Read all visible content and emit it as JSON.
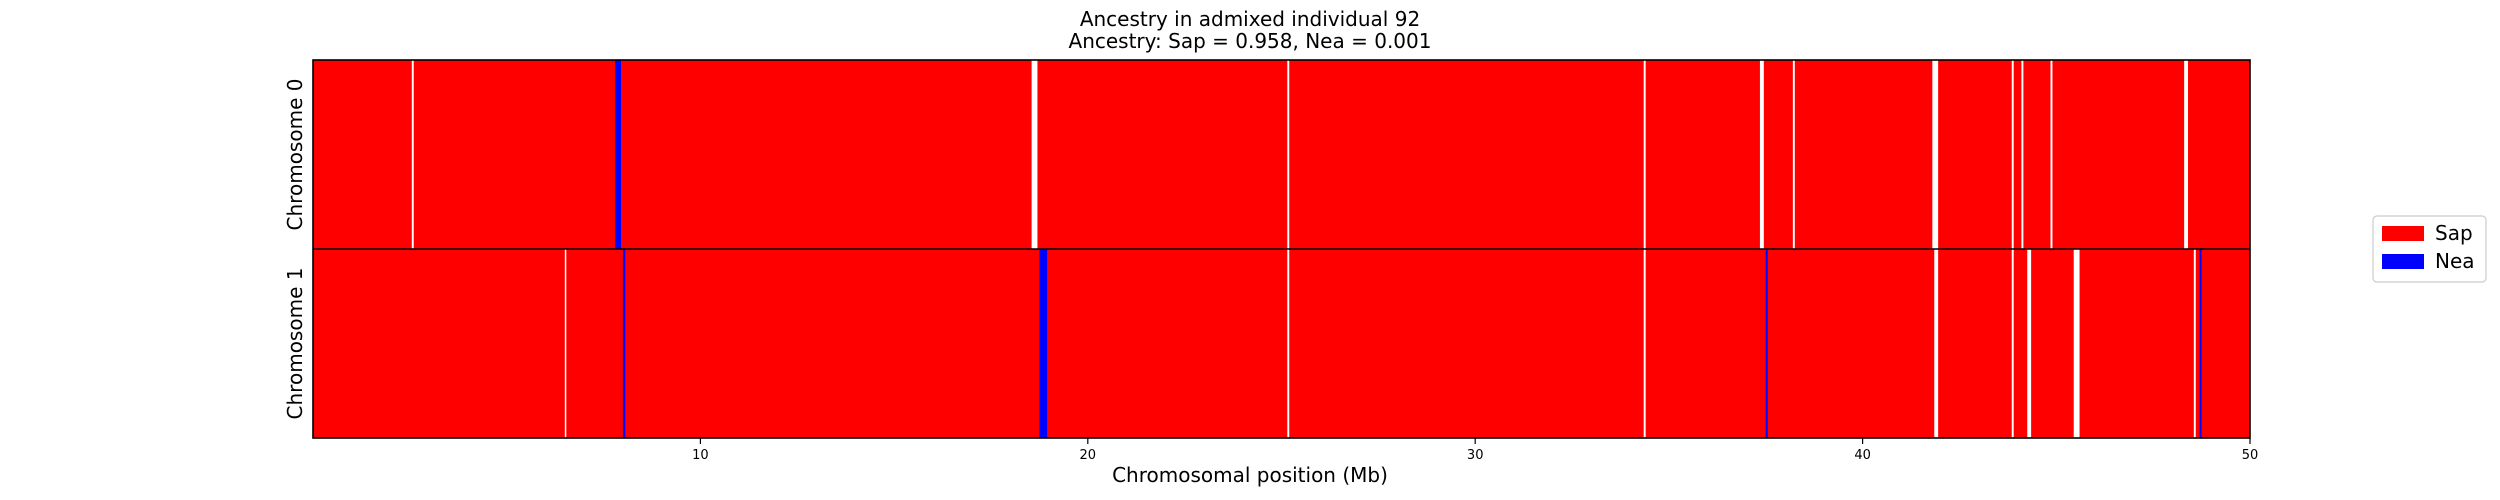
{
  "chart_data": {
    "type": "heatmap",
    "title": "Ancestry in admixed individual 92",
    "subtitle": "Ancestry: Sap = 0.958, Nea = 0.001",
    "xlabel": "Chromosomal position (Mb)",
    "xlim": [
      0,
      50
    ],
    "xticks": [
      10,
      20,
      30,
      40,
      50
    ],
    "grid": false,
    "legend_position": "right",
    "base_color": "#ff0000",
    "gap_color": "#ffffff",
    "series": [
      {
        "name": "Sap",
        "color": "#ff0000"
      },
      {
        "name": "Nea",
        "color": "#0000ff"
      }
    ],
    "rows": [
      {
        "label": "Chromosome 0",
        "ancestry": "Sap",
        "segments": [
          {
            "start": 7.8,
            "end": 7.95,
            "ancestry": "Nea"
          },
          {
            "start": 2.55,
            "end": 2.6,
            "ancestry": "gap"
          },
          {
            "start": 18.55,
            "end": 18.7,
            "ancestry": "gap"
          },
          {
            "start": 25.15,
            "end": 25.2,
            "ancestry": "gap"
          },
          {
            "start": 34.35,
            "end": 34.4,
            "ancestry": "gap"
          },
          {
            "start": 37.35,
            "end": 37.45,
            "ancestry": "gap"
          },
          {
            "start": 38.2,
            "end": 38.25,
            "ancestry": "gap"
          },
          {
            "start": 41.8,
            "end": 41.95,
            "ancestry": "gap"
          },
          {
            "start": 43.85,
            "end": 43.9,
            "ancestry": "gap"
          },
          {
            "start": 44.1,
            "end": 44.15,
            "ancestry": "gap"
          },
          {
            "start": 44.85,
            "end": 44.9,
            "ancestry": "gap"
          },
          {
            "start": 48.3,
            "end": 48.4,
            "ancestry": "gap"
          }
        ]
      },
      {
        "label": "Chromosome 1",
        "ancestry": "Sap",
        "segments": [
          {
            "start": 8.0,
            "end": 8.06,
            "ancestry": "Nea"
          },
          {
            "start": 18.75,
            "end": 18.95,
            "ancestry": "Nea"
          },
          {
            "start": 37.5,
            "end": 37.55,
            "ancestry": "Nea"
          },
          {
            "start": 48.7,
            "end": 48.75,
            "ancestry": "Nea"
          },
          {
            "start": 6.5,
            "end": 6.53,
            "ancestry": "gap"
          },
          {
            "start": 25.15,
            "end": 25.2,
            "ancestry": "gap"
          },
          {
            "start": 34.35,
            "end": 34.4,
            "ancestry": "gap"
          },
          {
            "start": 41.85,
            "end": 41.95,
            "ancestry": "gap"
          },
          {
            "start": 43.85,
            "end": 43.9,
            "ancestry": "gap"
          },
          {
            "start": 44.25,
            "end": 44.35,
            "ancestry": "gap"
          },
          {
            "start": 45.45,
            "end": 45.6,
            "ancestry": "gap"
          },
          {
            "start": 48.55,
            "end": 48.6,
            "ancestry": "gap"
          }
        ]
      }
    ]
  }
}
